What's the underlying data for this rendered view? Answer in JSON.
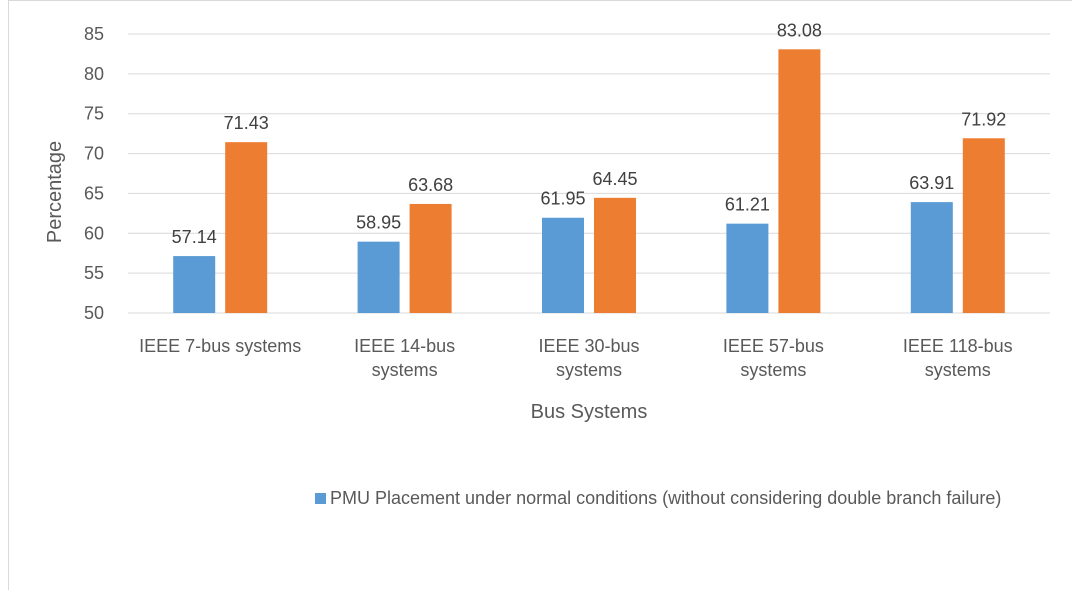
{
  "chart_data": {
    "type": "bar",
    "categories": [
      [
        "IEEE 7-bus systems"
      ],
      [
        "IEEE 14-bus",
        "systems"
      ],
      [
        "IEEE 30-bus",
        "systems"
      ],
      [
        "IEEE 57-bus",
        "systems"
      ],
      [
        "IEEE 118-bus",
        "systems"
      ]
    ],
    "series": [
      {
        "name": "PMU Placement under normal conditions (without considering double branch failure)",
        "color": "#5b9bd5",
        "values": [
          57.14,
          58.95,
          61.95,
          61.21,
          63.91
        ],
        "labels": [
          "57.14",
          "58.95",
          "61.95",
          "61.21",
          "63.91"
        ]
      },
      {
        "color": "#ed7d31",
        "values": [
          71.43,
          63.68,
          64.45,
          83.08,
          71.92
        ],
        "labels": [
          "71.43",
          "63.68",
          "64.45",
          "83.08",
          "71.92"
        ]
      }
    ],
    "xlabel": "Bus Systems",
    "ylabel": "Percentage",
    "ylim": [
      50,
      85
    ],
    "yticks": [
      "50",
      "55",
      "60",
      "65",
      "70",
      "75",
      "80",
      "85"
    ],
    "grid": true,
    "gridColor": "#d9d9d9",
    "legend": "bottom"
  }
}
